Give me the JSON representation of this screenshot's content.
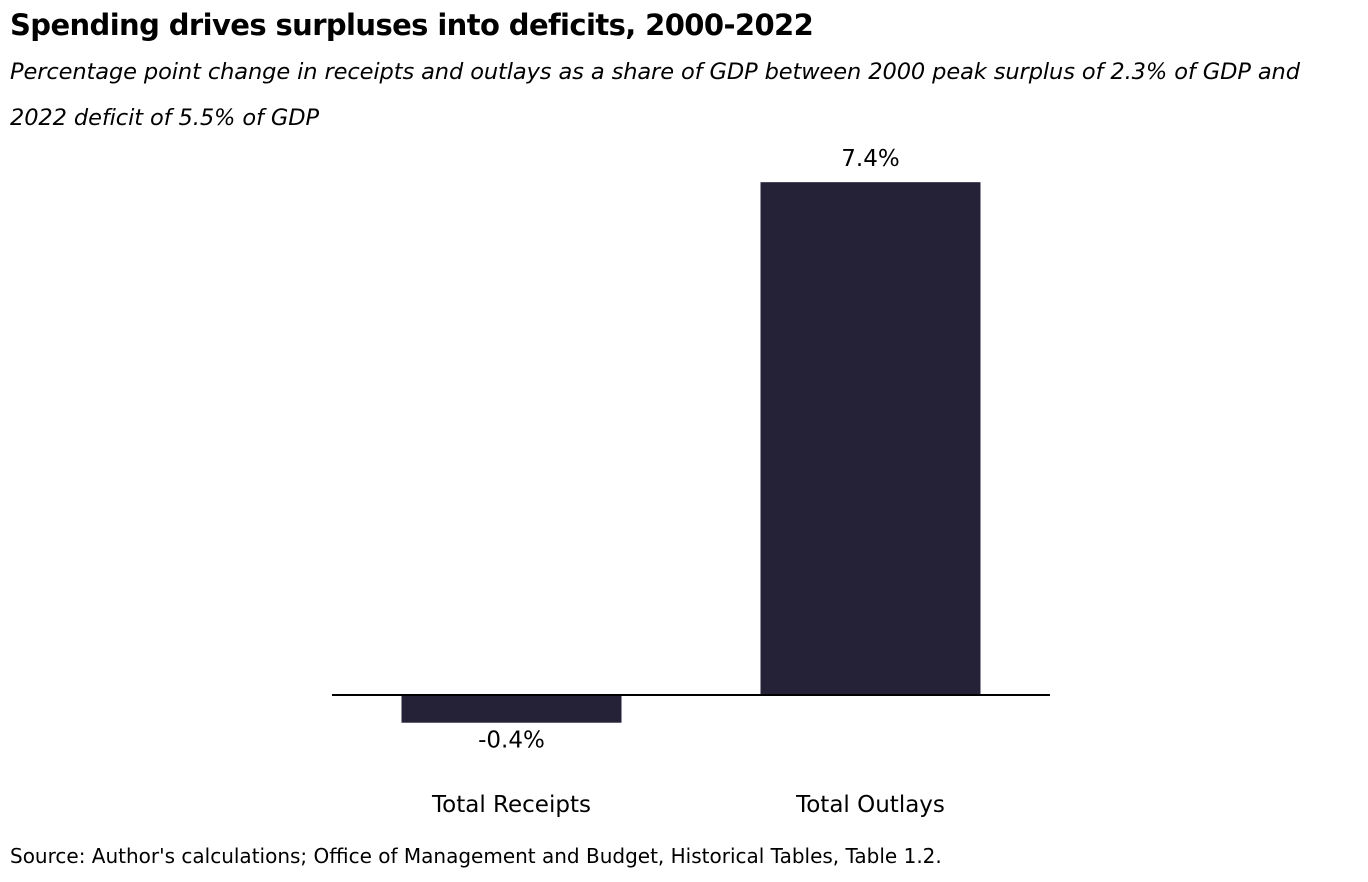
{
  "chart_data": {
    "type": "bar",
    "title": "Spending drives surpluses into deficits, 2000-2022",
    "subtitle": "Percentage point change in receipts and outlays as a share of GDP between 2000 peak surplus of 2.3% of GDP and 2022 deficit of 5.5% of GDP",
    "categories": [
      "Total Receipts",
      "Total Outlays"
    ],
    "values": [
      -0.4,
      7.4
    ],
    "value_labels": [
      "-0.4%",
      "7.4%"
    ],
    "source": "Source: Author's calculations; Office of Management and Budget, Historical Tables, Table 1.2.",
    "xlabel": "",
    "ylabel": "",
    "grid": false,
    "legend": "none",
    "bar_color": "#252238",
    "axis_color": "#000000"
  }
}
